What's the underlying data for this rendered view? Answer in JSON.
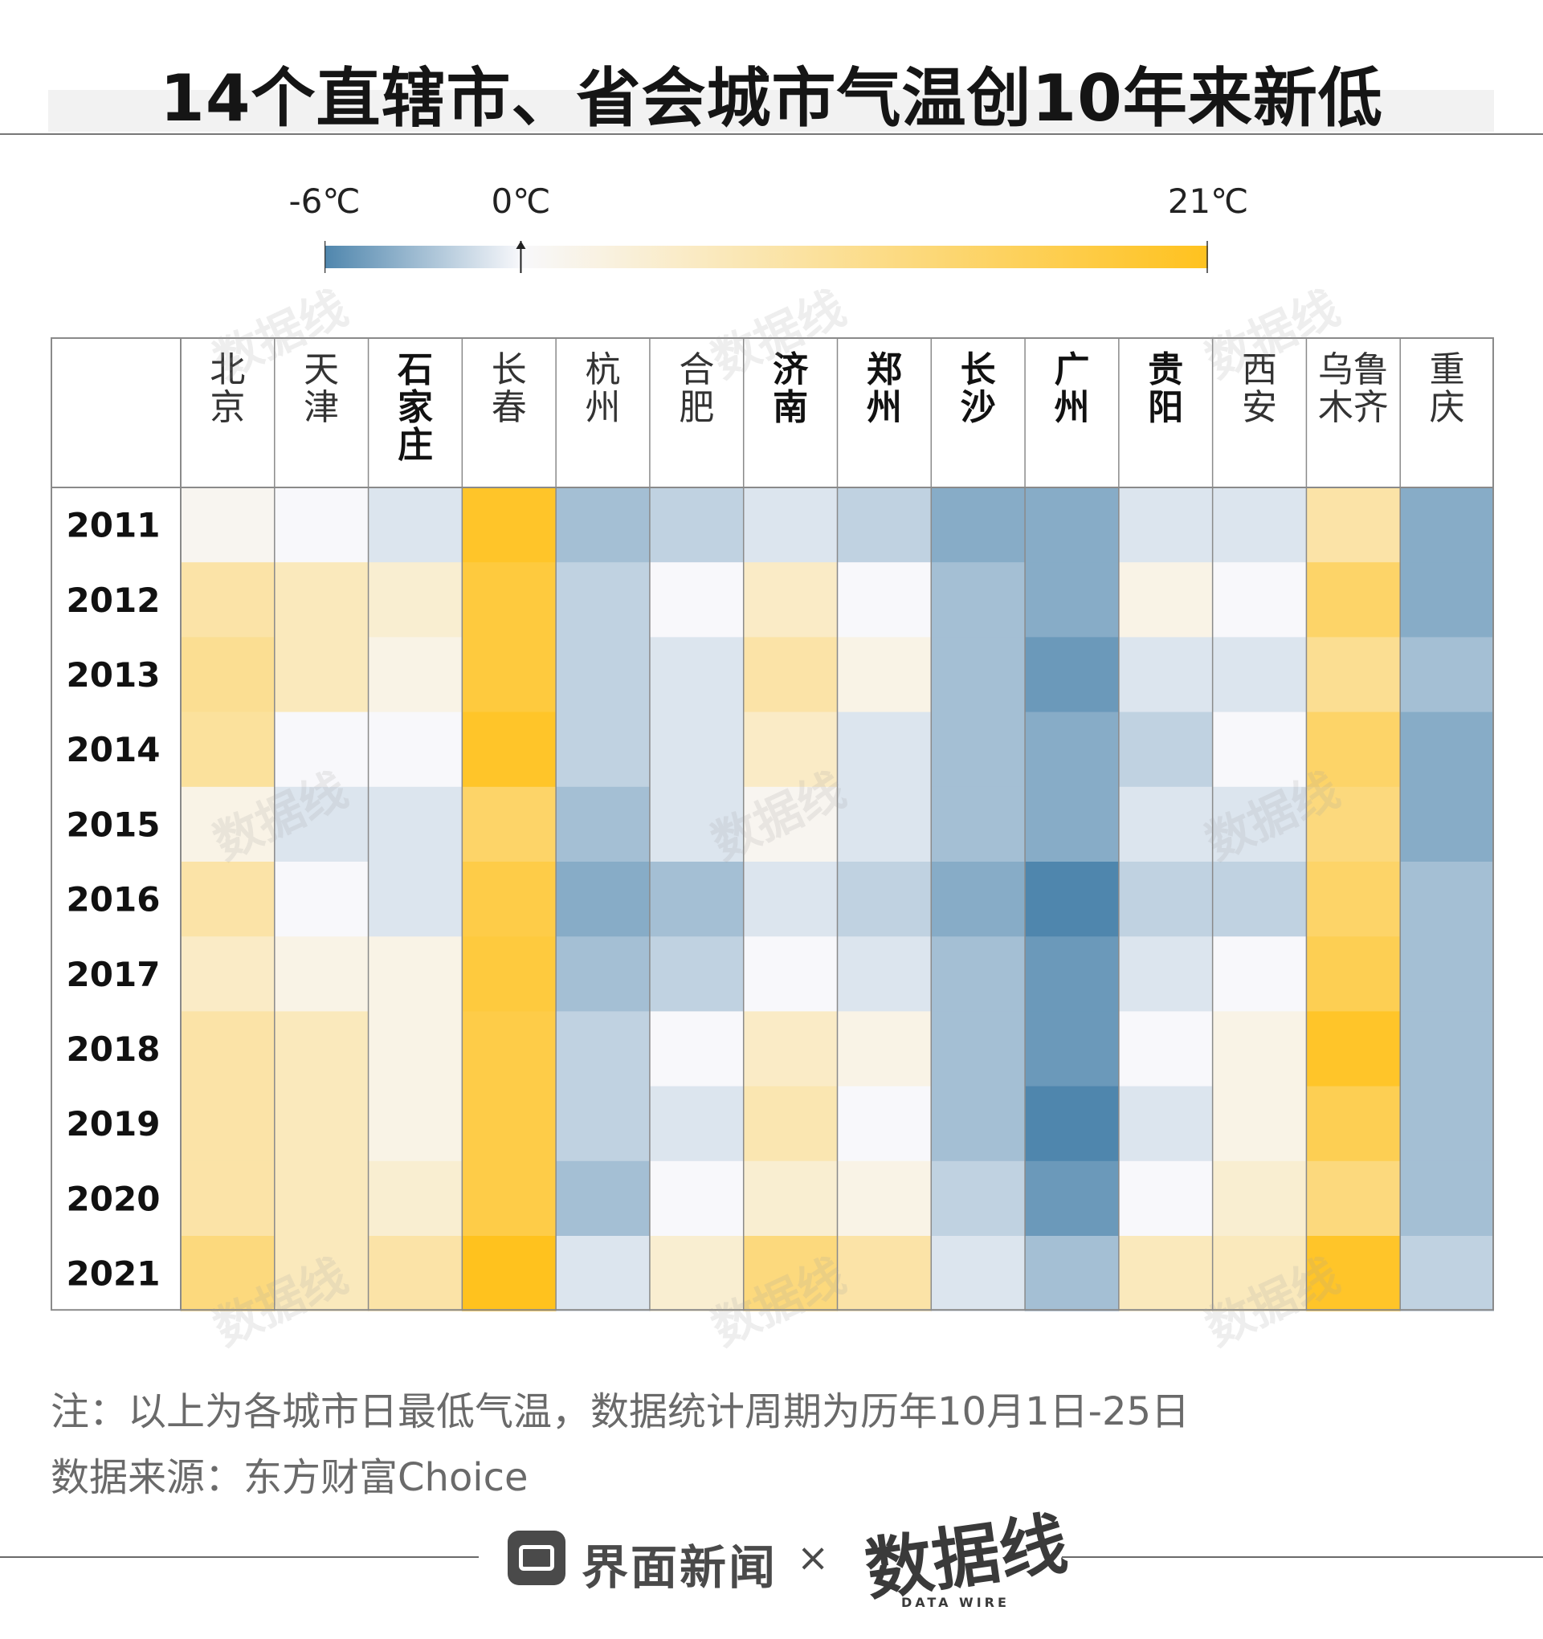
{
  "title": "14个直辖市、省会城市气温创10年来新低",
  "legend": {
    "min_label": "-6℃",
    "mid_label": "0℃",
    "max_label": "21℃",
    "min_value": -6,
    "mid_value": 0,
    "max_value": 21,
    "cold_color": "#4f86ad",
    "neutral_color": "#f8f8fb",
    "warm_color": "#ffc21e"
  },
  "chart_data": {
    "type": "heatmap",
    "metric": "日最低气温（℃）",
    "x_categories": [
      "北京",
      "天津",
      "石家庄",
      "长春",
      "杭州",
      "合肥",
      "济南",
      "郑州",
      "长沙",
      "广州",
      "贵阳",
      "西安",
      "乌鲁木齐",
      "重庆"
    ],
    "bold_categories": [
      "石家庄",
      "济南",
      "郑州",
      "长沙",
      "广州",
      "贵阳"
    ],
    "y_categories": [
      "2011",
      "2012",
      "2013",
      "2014",
      "2015",
      "2016",
      "2017",
      "2018",
      "2019",
      "2020",
      "2021"
    ],
    "values": [
      [
        1,
        0,
        -1,
        20,
        -3,
        -2,
        -1,
        -2,
        -4,
        -4,
        -1,
        -1,
        8,
        -4
      ],
      [
        8,
        6,
        4,
        18,
        -2,
        0,
        5,
        0,
        -3,
        -4,
        2,
        0,
        14,
        -4
      ],
      [
        10,
        6,
        2,
        18,
        -2,
        -1,
        8,
        2,
        -3,
        -5,
        -1,
        -1,
        10,
        -3
      ],
      [
        9,
        0,
        0,
        20,
        -2,
        -1,
        5,
        -1,
        -3,
        -4,
        -2,
        0,
        14,
        -4
      ],
      [
        2,
        -1,
        -1,
        14,
        -3,
        -1,
        1,
        -1,
        -3,
        -4,
        -1,
        -1,
        12,
        -4
      ],
      [
        8,
        0,
        -1,
        17,
        -4,
        -3,
        -1,
        -2,
        -4,
        -6,
        -2,
        -2,
        14,
        -3
      ],
      [
        5,
        2,
        2,
        18,
        -3,
        -2,
        0,
        -1,
        -3,
        -5,
        -1,
        0,
        16,
        -3
      ],
      [
        8,
        6,
        2,
        17,
        -2,
        0,
        5,
        2,
        -3,
        -5,
        0,
        2,
        20,
        -3
      ],
      [
        8,
        6,
        2,
        17,
        -2,
        -1,
        7,
        0,
        -3,
        -6,
        -1,
        2,
        16,
        -3
      ],
      [
        8,
        6,
        4,
        17,
        -3,
        0,
        4,
        2,
        -2,
        -5,
        0,
        4,
        12,
        -3
      ],
      [
        12,
        6,
        8,
        21,
        -1,
        4,
        12,
        8,
        -1,
        -3,
        6,
        6,
        20,
        -2
      ]
    ]
  },
  "notes": {
    "line1": "注：以上为各城市日最低气温，数据统计周期为历年10月1日-25日",
    "line2": "数据来源：东方财富Choice"
  },
  "footer": {
    "brand": "界面新闻",
    "times": "×",
    "partner": "数据线",
    "partner_sub": "DATA WIRE",
    "brand_icon": "jiemian-logo-icon"
  },
  "watermark": "数据线"
}
